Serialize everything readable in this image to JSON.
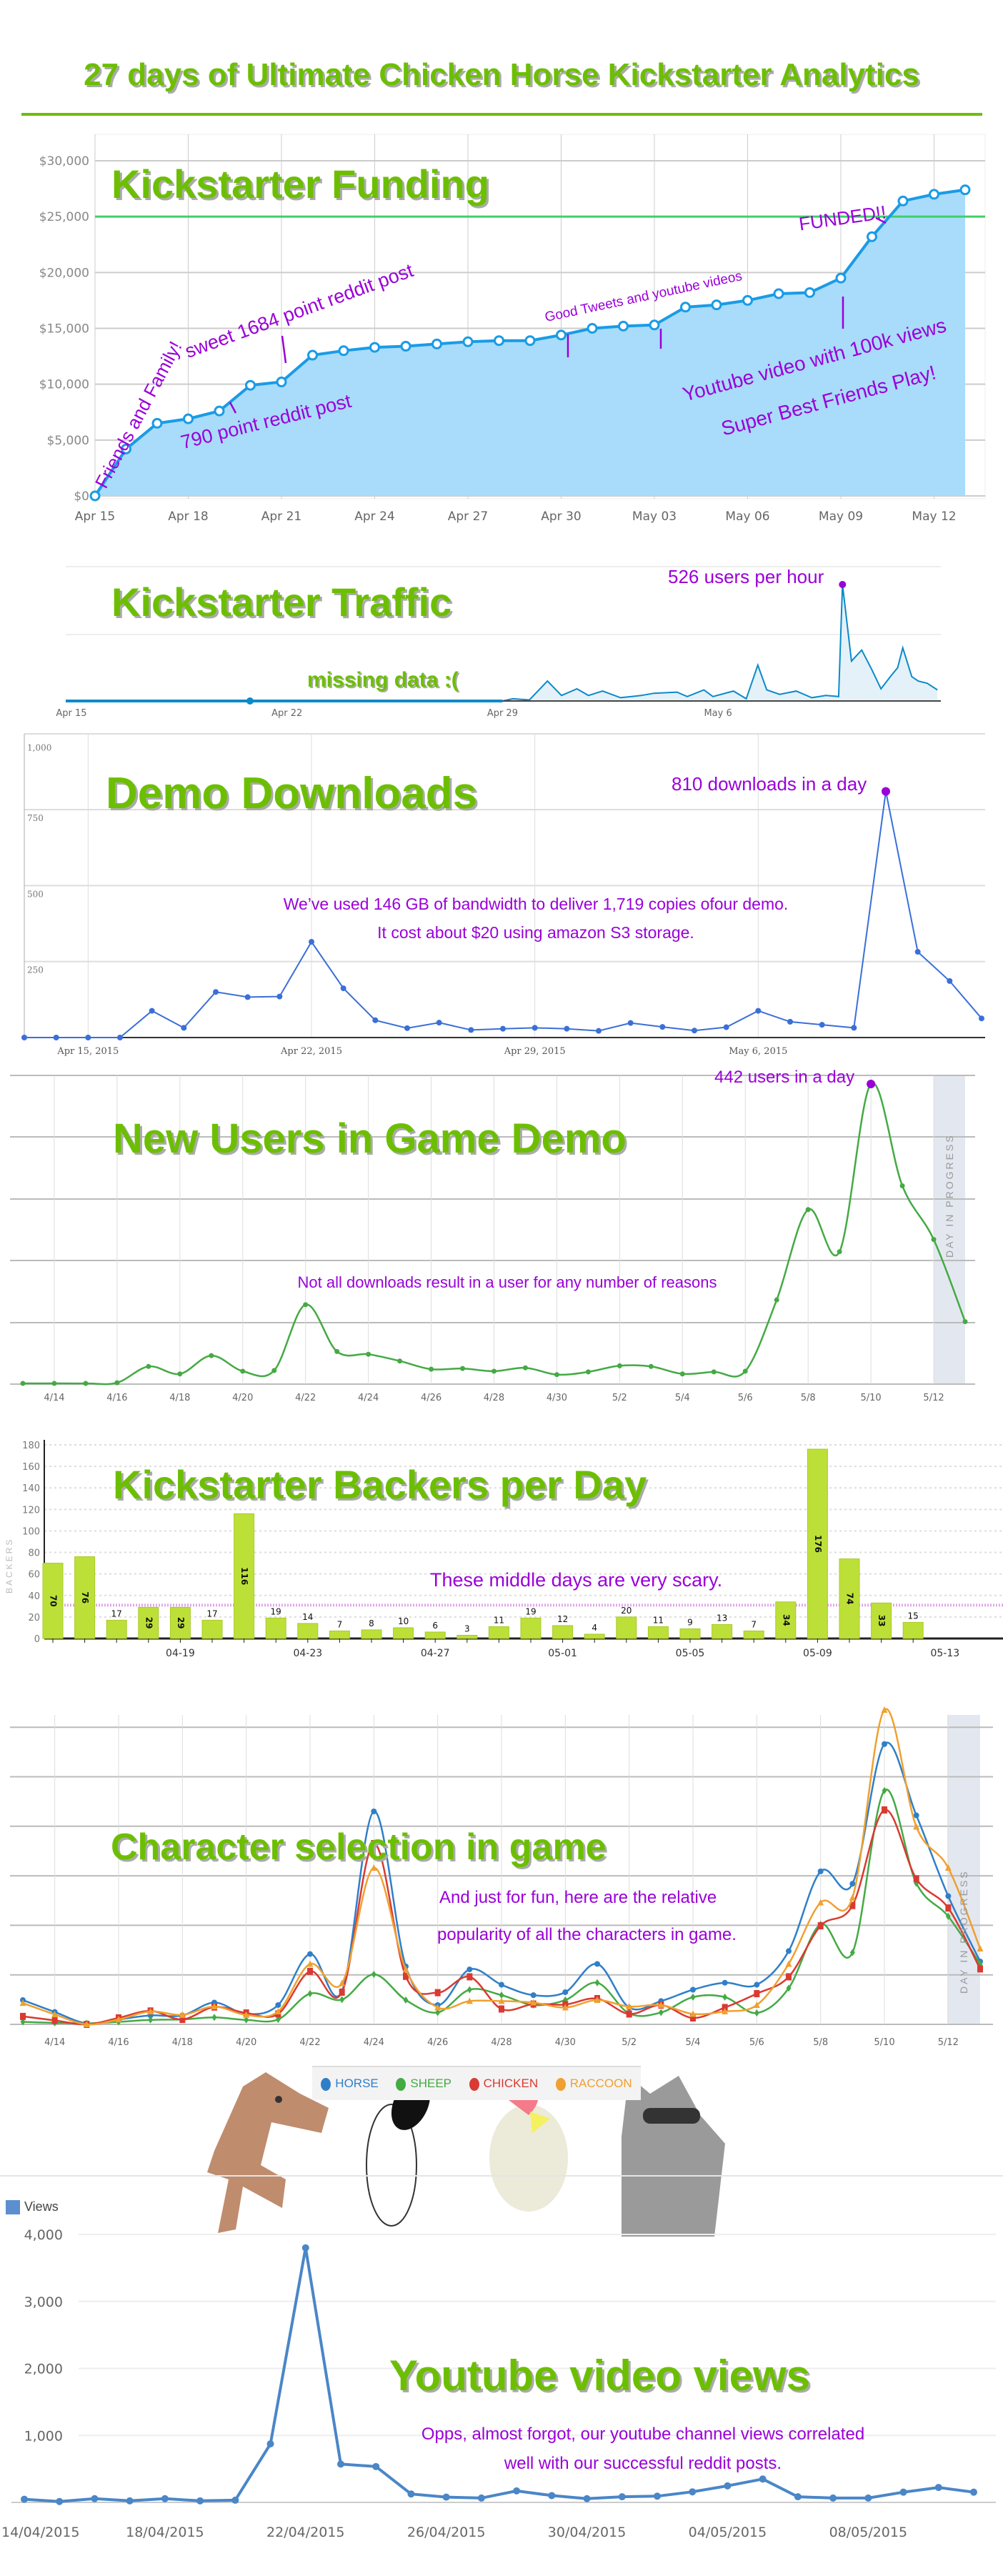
{
  "title": "27 days of Ultimate Chicken Horse Kickstarter Analytics",
  "colors": {
    "title_green": "#6cbf00",
    "annotation_purple": "#9a00d8",
    "funding_fill": "#a8dcfa",
    "funding_line": "#1a9be6",
    "goal_line": "#3fcf6a",
    "traffic_line": "#0a8ac9",
    "demo_line": "#3a6fd8",
    "users_line": "#44aa44",
    "backers_bar": "#bde038",
    "youtube_line": "#4a86c8"
  },
  "chart_data": [
    {
      "type": "area",
      "title": "Kickstarter Funding",
      "x": [
        "Apr 15",
        "Apr 16",
        "Apr 17",
        "Apr 18",
        "Apr 19",
        "Apr 20",
        "Apr 21",
        "Apr 22",
        "Apr 23",
        "Apr 24",
        "Apr 25",
        "Apr 26",
        "Apr 27",
        "Apr 28",
        "Apr 29",
        "Apr 30",
        "May 01",
        "May 02",
        "May 03",
        "May 04",
        "May 05",
        "May 06",
        "May 07",
        "May 08",
        "May 09",
        "May 10",
        "May 11",
        "May 12",
        "May 13"
      ],
      "values": [
        0,
        4200,
        6500,
        6900,
        7600,
        9900,
        10200,
        12600,
        13000,
        13300,
        13400,
        13600,
        13800,
        13900,
        13900,
        14400,
        15000,
        15200,
        15300,
        16900,
        17100,
        17500,
        18100,
        18200,
        19500,
        23200,
        26400,
        27000,
        27400
      ],
      "goal": 25000,
      "ylim": [
        0,
        32500
      ],
      "yticks": [
        "$0",
        "$5,000",
        "$10,000",
        "$15,000",
        "$20,000",
        "$25,000",
        "$30,000"
      ],
      "xticks": [
        "Apr 15",
        "Apr 18",
        "Apr 21",
        "Apr 24",
        "Apr 27",
        "Apr 30",
        "May 03",
        "May 06",
        "May 09",
        "May 12"
      ],
      "grid": true,
      "annotations": [
        "Friends and Family!",
        "sweet 1684 point reddit post",
        "790 point reddit post",
        "Good Tweets and youtube videos",
        "FUNDED!!",
        "Youtube video with 100k views",
        "Super Best Friends Play!"
      ]
    },
    {
      "type": "area",
      "title": "Kickstarter Traffic",
      "xticks": [
        "Apr 15",
        "Apr 22",
        "Apr 29",
        "May 6"
      ],
      "missing_range": [
        "Apr 15",
        "Apr 29"
      ],
      "points": [
        [
          "Apr 29 08:00",
          10
        ],
        [
          "Apr 29 21:00",
          5
        ],
        [
          "Apr 30 11:00",
          90
        ],
        [
          "Apr 30 22:00",
          25
        ],
        [
          "May 1 10:00",
          55
        ],
        [
          "May 1 19:00",
          25
        ],
        [
          "May 2 06:00",
          45
        ],
        [
          "May 2 20:00",
          15
        ],
        [
          "May 3 12:00",
          25
        ],
        [
          "May 3 22:00",
          35
        ],
        [
          "May 4 16:00",
          40
        ],
        [
          "May 5 00:00",
          20
        ],
        [
          "May 5 13:00",
          50
        ],
        [
          "May 5 20:00",
          20
        ],
        [
          "May 6 12:00",
          45
        ],
        [
          "May 6 22:00",
          10
        ],
        [
          "May 7 07:00",
          162
        ],
        [
          "May 7 14:00",
          50
        ],
        [
          "May 8 00:00",
          30
        ],
        [
          "May 8 13:00",
          45
        ],
        [
          "May 9 01:00",
          15
        ],
        [
          "May 9 12:00",
          25
        ],
        [
          "May 9 22:00",
          20
        ],
        [
          "May 10 01:00",
          526
        ],
        [
          "May 10 08:00",
          180
        ],
        [
          "May 10 16:00",
          230
        ],
        [
          "May 11 00:00",
          140
        ],
        [
          "May 11 07:00",
          55
        ],
        [
          "May 11 15:00",
          115
        ],
        [
          "May 11 20:00",
          150
        ],
        [
          "May 12 00:00",
          240
        ],
        [
          "May 12 07:00",
          110
        ],
        [
          "May 12 12:00",
          90
        ],
        [
          "May 12 19:00",
          80
        ],
        [
          "May 13 03:00",
          50
        ]
      ],
      "ylim": [
        0,
        640
      ],
      "annotations": [
        "526 users per hour",
        "missing data :("
      ]
    },
    {
      "type": "line",
      "title": "Demo Downloads",
      "x": [
        "Apr 13",
        "Apr 14",
        "Apr 15",
        "Apr 16",
        "Apr 17",
        "Apr 18",
        "Apr 19",
        "Apr 20",
        "Apr 21",
        "Apr 22",
        "Apr 23",
        "Apr 24",
        "Apr 25",
        "Apr 26",
        "Apr 27",
        "Apr 28",
        "Apr 29",
        "Apr 30",
        "May 1",
        "May 2",
        "May 3",
        "May 4",
        "May 5",
        "May 6",
        "May 7",
        "May 8",
        "May 9",
        "May 10",
        "May 11",
        "May 12",
        "May 13"
      ],
      "values": [
        0,
        0,
        0,
        0,
        88,
        32,
        150,
        133,
        135,
        315,
        162,
        57,
        31,
        49,
        25,
        29,
        32,
        29,
        22,
        48,
        35,
        23,
        34,
        88,
        52,
        42,
        32,
        810,
        282,
        186,
        63
      ],
      "ylim": [
        0,
        1000
      ],
      "yticks": [
        "1,000",
        "750",
        "500",
        "250"
      ],
      "xticks": [
        "Apr 15, 2015",
        "Apr 22, 2015",
        "Apr 29, 2015",
        "May 6, 2015"
      ],
      "annotations": [
        "810 downloads in a day",
        "We’ve used 146 GB of bandwidth to deliver 1,719 copies ofour demo.",
        "It cost about $20 using amazon S3 storage."
      ]
    },
    {
      "type": "line",
      "title": "New Users in Game Demo",
      "x": [
        "4/13",
        "4/14",
        "4/15",
        "4/16",
        "4/17",
        "4/18",
        "4/19",
        "4/20",
        "4/21",
        "4/22",
        "4/23",
        "4/24",
        "4/25",
        "4/26",
        "4/27",
        "4/28",
        "4/29",
        "4/30",
        "5/1",
        "5/2",
        "5/3",
        "5/4",
        "5/5",
        "5/6",
        "5/7",
        "5/8",
        "5/9",
        "5/10",
        "5/11",
        "5/12",
        "5/13"
      ],
      "values": [
        1,
        1,
        1,
        2,
        26,
        15,
        42,
        19,
        20,
        117,
        48,
        44,
        34,
        22,
        23,
        19,
        24,
        14,
        18,
        27,
        26,
        15,
        18,
        19,
        124,
        257,
        195,
        442,
        292,
        213,
        92
      ],
      "xticks": [
        "4/14",
        "4/16",
        "4/18",
        "4/20",
        "4/22",
        "4/24",
        "4/26",
        "4/28",
        "4/30",
        "5/2",
        "5/4",
        "5/6",
        "5/8",
        "5/10",
        "5/12"
      ],
      "in_progress_label": "DAY IN PROGRESS",
      "annotations": [
        "442 users in a day",
        "Not all downloads result in a user for any number of reasons"
      ]
    },
    {
      "type": "bar",
      "title": "Kickstarter Backers per Day",
      "ylabel": "BACKERS",
      "values": [
        70,
        76,
        17,
        29,
        29,
        17,
        116,
        19,
        14,
        7,
        8,
        10,
        6,
        3,
        11,
        19,
        12,
        4,
        20,
        11,
        9,
        13,
        7,
        34,
        176,
        74,
        33,
        15
      ],
      "ylim": [
        0,
        180
      ],
      "yticks": [
        "0",
        "20",
        "40",
        "60",
        "80",
        "100",
        "120",
        "140",
        "160",
        "180"
      ],
      "xticks": [
        "04-19",
        "04-23",
        "04-27",
        "05-01",
        "05-05",
        "05-09",
        "05-13"
      ],
      "reference_line": 31,
      "annotations": [
        "These middle days are very scary."
      ]
    },
    {
      "type": "line",
      "title": "Character selection in game",
      "x": [
        "4/13",
        "4/14",
        "4/15",
        "4/16",
        "4/17",
        "4/18",
        "4/19",
        "4/20",
        "4/21",
        "4/22",
        "4/23",
        "4/24",
        "4/25",
        "4/26",
        "4/27",
        "4/28",
        "4/29",
        "4/30",
        "5/1",
        "5/2",
        "5/3",
        "5/4",
        "5/5",
        "5/6",
        "5/7",
        "5/8",
        "5/9",
        "5/10",
        "5/11",
        "5/12",
        "5/13"
      ],
      "series": [
        {
          "name": "HORSE",
          "color": "#2f7fc8",
          "values": [
            4.9,
            2.5,
            0.2,
            1,
            1.8,
            1.8,
            4.4,
            2.1,
            3.9,
            14.2,
            6.7,
            43,
            11.7,
            3.9,
            11.1,
            8,
            5.9,
            6.5,
            12.2,
            3.4,
            4.7,
            7,
            8.4,
            8,
            14.8,
            30.9,
            28.4,
            56.6,
            42.2,
            25.9,
            12.7
          ]
        },
        {
          "name": "SHEEP",
          "color": "#44aa44",
          "values": [
            0.5,
            0.3,
            0.2,
            0.5,
            0.9,
            1,
            1.4,
            0.9,
            1,
            6.2,
            5,
            10.1,
            4.9,
            2.4,
            7,
            5.9,
            3.9,
            4.9,
            8.4,
            2.2,
            2.4,
            5.5,
            5.5,
            2.3,
            7.3,
            20.2,
            14.5,
            47.2,
            28.5,
            21.8,
            12.2
          ]
        },
        {
          "name": "CHICKEN",
          "color": "#d93a32",
          "values": [
            1.6,
            0.8,
            0,
            1.3,
            2.7,
            1,
            3.5,
            2.3,
            2.1,
            10.7,
            6.5,
            36.5,
            9.7,
            6.4,
            9.6,
            3.1,
            4.1,
            4,
            5.2,
            2.1,
            3.9,
            1.3,
            3.4,
            6.2,
            9.6,
            19.9,
            24,
            43.3,
            29.4,
            23.5,
            11.2
          ]
        },
        {
          "name": "RACCOON",
          "color": "#f0a030",
          "values": [
            4.3,
            2,
            0,
            1,
            2.6,
            1.9,
            3.6,
            1.9,
            2.6,
            12.2,
            8.3,
            31.6,
            11.1,
            3.4,
            4.7,
            4.7,
            4.4,
            3.4,
            4.9,
            3.6,
            3.9,
            2.1,
            2.6,
            3.9,
            12.2,
            24.6,
            25.6,
            63.5,
            39.9,
            31.6,
            15.3
          ]
        }
      ],
      "xticks": [
        "4/14",
        "4/16",
        "4/18",
        "4/20",
        "4/22",
        "4/24",
        "4/26",
        "4/28",
        "4/30",
        "5/2",
        "5/4",
        "5/6",
        "5/8",
        "5/10",
        "5/12"
      ],
      "legend": "bottom",
      "in_progress_label": "DAY IN PROGRESS",
      "annotations": [
        "And just for fun, here are the relative",
        "popularity of all the characters in game."
      ]
    },
    {
      "type": "line",
      "title": "Youtube video views",
      "legend_label": "Views",
      "x": [
        "14/04",
        "15/04",
        "16/04",
        "17/04",
        "18/04",
        "19/04",
        "20/04",
        "21/04",
        "22/04",
        "23/04",
        "24/04",
        "25/04",
        "26/04",
        "27/04",
        "28/04",
        "29/04",
        "30/04",
        "01/05",
        "02/05",
        "03/05",
        "04/05",
        "05/05",
        "06/05",
        "07/05",
        "08/05",
        "09/05",
        "10/05",
        "11/05"
      ],
      "values": [
        47,
        14,
        56,
        23,
        56,
        23,
        33,
        874,
        3800,
        572,
        535,
        126,
        79,
        65,
        172,
        102,
        56,
        84,
        93,
        158,
        247,
        349,
        84,
        65,
        65,
        153,
        223,
        153
      ],
      "ylim": [
        0,
        4000
      ],
      "yticks": [
        "1,000",
        "2,000",
        "3,000",
        "4,000"
      ],
      "xticks": [
        "14/04/2015",
        "18/04/2015",
        "22/04/2015",
        "26/04/2015",
        "30/04/2015",
        "04/05/2015",
        "08/05/2015"
      ],
      "annotations": [
        "Opps, almost forgot, our youtube channel views correlated",
        "well with our successful reddit posts."
      ]
    }
  ]
}
